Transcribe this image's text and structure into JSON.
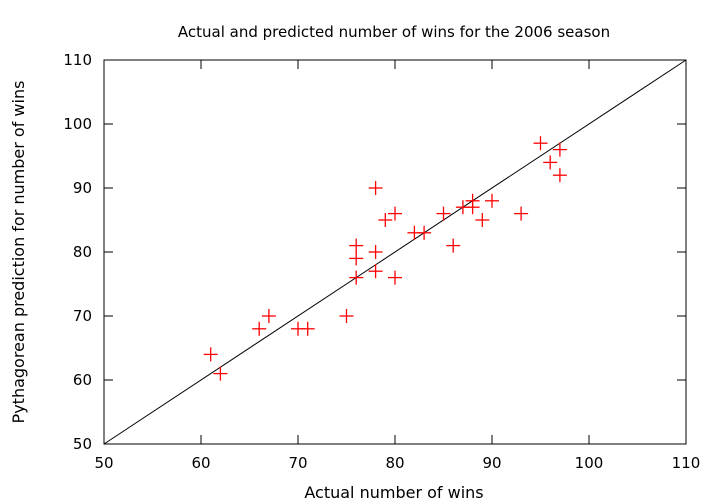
{
  "chart_data": {
    "type": "scatter",
    "title": "Actual and predicted number of wins for the 2006 season",
    "xlabel": "Actual number of wins",
    "ylabel": "Pythagorean prediction for number of wins",
    "xlim": [
      50,
      110
    ],
    "ylim": [
      50,
      110
    ],
    "xticks": [
      "50",
      "60",
      "70",
      "80",
      "90",
      "100",
      "110"
    ],
    "yticks": [
      "50",
      "60",
      "70",
      "80",
      "90",
      "100",
      "110"
    ],
    "grid": false,
    "legend": "none",
    "marker": "plus",
    "marker_color": "#ff0000",
    "reference_line": {
      "type": "y=x",
      "color": "#000000"
    },
    "points": [
      {
        "x": 61,
        "y": 64
      },
      {
        "x": 62,
        "y": 61
      },
      {
        "x": 66,
        "y": 68
      },
      {
        "x": 67,
        "y": 70
      },
      {
        "x": 70,
        "y": 68
      },
      {
        "x": 71,
        "y": 68
      },
      {
        "x": 75,
        "y": 70
      },
      {
        "x": 76,
        "y": 81
      },
      {
        "x": 76,
        "y": 79
      },
      {
        "x": 76,
        "y": 76
      },
      {
        "x": 78,
        "y": 90
      },
      {
        "x": 78,
        "y": 80
      },
      {
        "x": 78,
        "y": 77
      },
      {
        "x": 79,
        "y": 85
      },
      {
        "x": 80,
        "y": 86
      },
      {
        "x": 80,
        "y": 76
      },
      {
        "x": 82,
        "y": 83
      },
      {
        "x": 83,
        "y": 83
      },
      {
        "x": 85,
        "y": 86
      },
      {
        "x": 86,
        "y": 81
      },
      {
        "x": 87,
        "y": 87
      },
      {
        "x": 88,
        "y": 88
      },
      {
        "x": 88,
        "y": 87
      },
      {
        "x": 89,
        "y": 85
      },
      {
        "x": 90,
        "y": 88
      },
      {
        "x": 93,
        "y": 86
      },
      {
        "x": 95,
        "y": 97
      },
      {
        "x": 96,
        "y": 94
      },
      {
        "x": 97,
        "y": 96
      },
      {
        "x": 97,
        "y": 92
      }
    ]
  }
}
